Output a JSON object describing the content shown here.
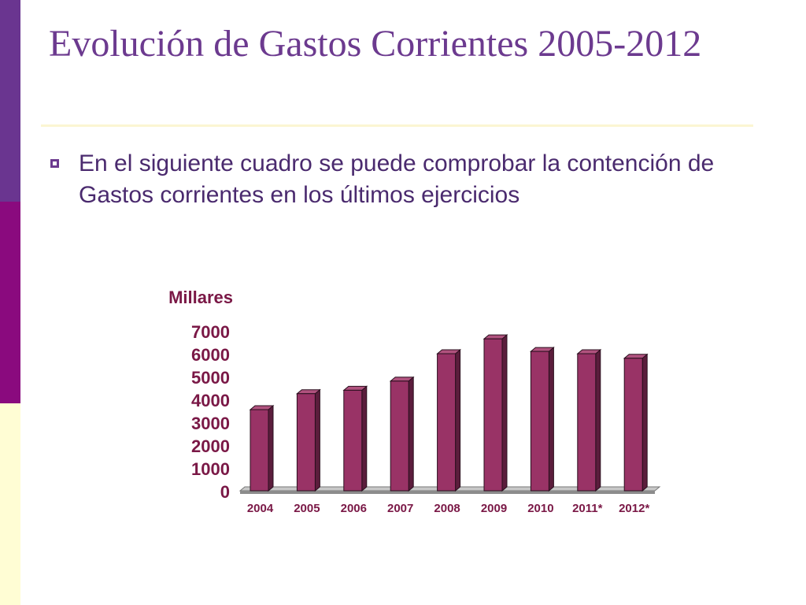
{
  "slide": {
    "title": "Evolución de Gastos Corrientes 2005-2012",
    "bullet": "En el siguiente cuadro se puede comprobar la contención de Gastos corrientes en los últimos ejercicios"
  },
  "colors": {
    "sidebar_top": "#6a3590",
    "sidebar_mid": "#8a0a7e",
    "sidebar_bottom": "#fffdd4",
    "title": "#6c3a8f",
    "bar_front": "#993366",
    "bar_side": "#5b1d3c",
    "bar_top": "#b0527e",
    "label": "#7a1846"
  },
  "icons": {
    "bullet": "square-bullet-icon"
  },
  "chart_data": {
    "type": "bar",
    "ylabel": "Millares",
    "categories": [
      "2004",
      "2005",
      "2006",
      "2007",
      "2008",
      "2009",
      "2010",
      "2011*",
      "2012*"
    ],
    "values": [
      3550,
      4250,
      4400,
      4800,
      6000,
      6650,
      6100,
      6000,
      5800
    ],
    "ylim": [
      0,
      7000
    ],
    "yticks": [
      0,
      1000,
      2000,
      3000,
      4000,
      5000,
      6000,
      7000
    ],
    "grid": false,
    "legend": "none",
    "style": "3d-column"
  }
}
